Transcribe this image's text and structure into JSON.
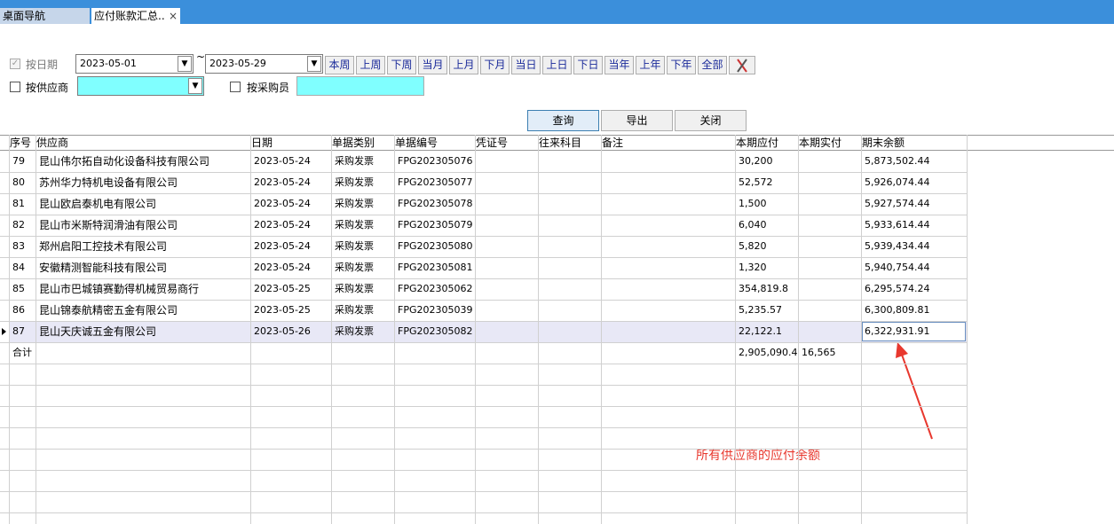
{
  "tabs": {
    "nav": "桌面导航",
    "active": "应付账款汇总..",
    "close": "×"
  },
  "filters": {
    "by_date": "按日期",
    "date_from": "2023-05-01",
    "tilde": "~",
    "date_to": "2023-05-29",
    "periods": [
      "本周",
      "上周",
      "下周",
      "当月",
      "上月",
      "下月",
      "当日",
      "上日",
      "下日",
      "当年",
      "上年",
      "下年",
      "全部"
    ],
    "by_supplier": "按供应商",
    "by_buyer": "按采购员"
  },
  "actions": [
    "查询",
    "导出",
    "关闭"
  ],
  "table": {
    "headers": [
      "序号",
      "供应商",
      "日期",
      "单据类别",
      "单据编号",
      "凭证号",
      "往来科目",
      "备注",
      "本期应付",
      "本期实付",
      "期末余额"
    ],
    "rows": [
      {
        "no": "79",
        "supplier": "昆山伟尔拓自动化设备科技有限公司",
        "date": "2023-05-24",
        "type": "采购发票",
        "doc_no": "FPG202305076",
        "payable": "30,200",
        "balance": "5,873,502.44"
      },
      {
        "no": "80",
        "supplier": "苏州华力特机电设备有限公司",
        "date": "2023-05-24",
        "type": "采购发票",
        "doc_no": "FPG202305077",
        "payable": "52,572",
        "balance": "5,926,074.44"
      },
      {
        "no": "81",
        "supplier": "昆山欧启泰机电有限公司",
        "date": "2023-05-24",
        "type": "采购发票",
        "doc_no": "FPG202305078",
        "payable": "1,500",
        "balance": "5,927,574.44"
      },
      {
        "no": "82",
        "supplier": "昆山市米斯特润滑油有限公司",
        "date": "2023-05-24",
        "type": "采购发票",
        "doc_no": "FPG202305079",
        "payable": "6,040",
        "balance": "5,933,614.44"
      },
      {
        "no": "83",
        "supplier": "郑州启阳工控技术有限公司",
        "date": "2023-05-24",
        "type": "采购发票",
        "doc_no": "FPG202305080",
        "payable": "5,820",
        "balance": "5,939,434.44"
      },
      {
        "no": "84",
        "supplier": "安徽精测智能科技有限公司",
        "date": "2023-05-24",
        "type": "采购发票",
        "doc_no": "FPG202305081",
        "payable": "1,320",
        "balance": "5,940,754.44"
      },
      {
        "no": "85",
        "supplier": "昆山市巴城镇赛勤得机械贸易商行",
        "date": "2023-05-25",
        "type": "采购发票",
        "doc_no": "FPG202305062",
        "payable": "354,819.8",
        "balance": "6,295,574.24"
      },
      {
        "no": "86",
        "supplier": "昆山锦泰航精密五金有限公司",
        "date": "2023-05-25",
        "type": "采购发票",
        "doc_no": "FPG202305039",
        "payable": "5,235.57",
        "balance": "6,300,809.81"
      },
      {
        "no": "87",
        "supplier": "昆山天庆诚五金有限公司",
        "date": "2023-05-26",
        "type": "采购发票",
        "doc_no": "FPG202305082",
        "payable": "22,122.1",
        "balance": "6,322,931.91"
      }
    ],
    "total": {
      "no": "合计",
      "payable": "2,905,090.4",
      "paid": "16,565"
    }
  },
  "annotation": "所有供应商的应付余额"
}
